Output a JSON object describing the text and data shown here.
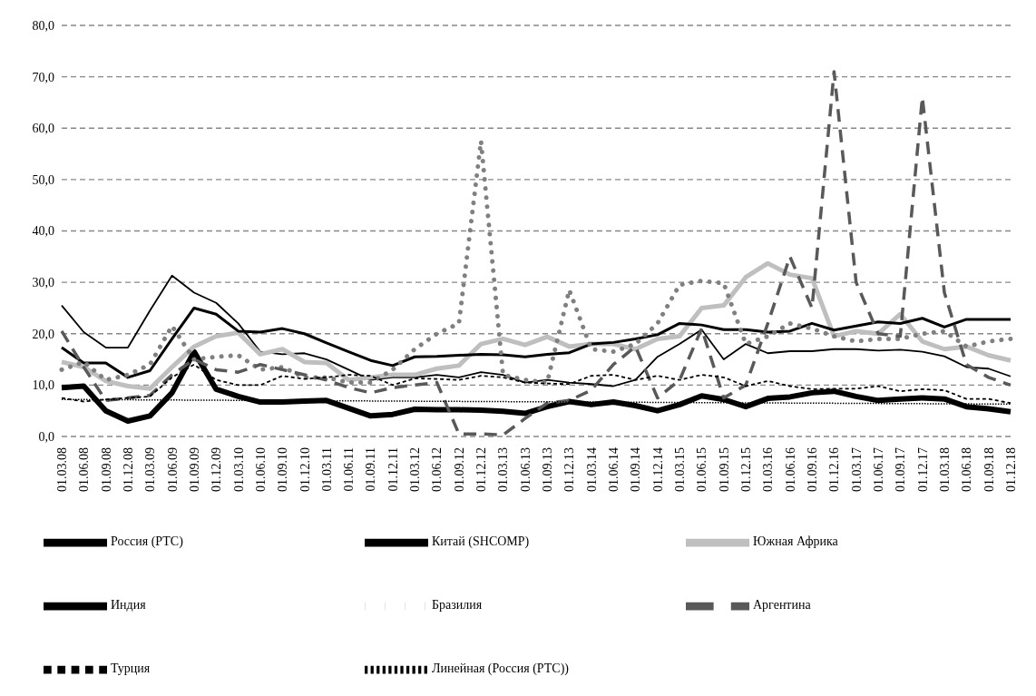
{
  "chart_data": {
    "type": "line",
    "categories": [
      "01.03.08",
      "01.06.08",
      "01.09.08",
      "01.12.08",
      "01.03.09",
      "01.06.09",
      "01.09.09",
      "01.12.09",
      "01.03.10",
      "01.06.10",
      "01.09.10",
      "01.12.10",
      "01.03.11",
      "01.06.11",
      "01.09.11",
      "01.12.11",
      "01.03.12",
      "01.06.12",
      "01.09.12",
      "01.12.12",
      "01.03.13",
      "01.06.13",
      "01.09.13",
      "01.12.13",
      "01.03.14",
      "01.06.14",
      "01.09.14",
      "01.12.14",
      "01.03.15",
      "01.06.15",
      "01.09.15",
      "01.12.15",
      "01.03.16",
      "01.06.16",
      "01.09.16",
      "01.12.16",
      "01.03.17",
      "01.06.17",
      "01.09.17",
      "01.12.17",
      "01.03.18",
      "01.06.18",
      "01.09.18",
      "01.12.18"
    ],
    "series": [
      {
        "name": "Россия (РТС)",
        "color": "#000000",
        "line_style": "solid",
        "values": [
          9.5,
          9.8,
          5,
          3,
          4,
          8.5,
          16.5,
          9.2,
          7.8,
          6.7,
          6.7,
          6.9,
          7,
          5.5,
          4,
          4.3,
          5.3,
          5.2,
          5.2,
          5.1,
          4.9,
          4.5,
          5.8,
          6.8,
          6.2,
          6.7,
          6,
          5,
          6.2,
          7.9,
          7.2,
          5.8,
          7.4,
          7.7,
          8.5,
          8.8,
          7.8,
          7,
          7.3,
          7.5,
          7.3,
          5.8,
          5.4,
          4.8
        ]
      },
      {
        "name": "Китай (SHCOMP)",
        "color": "#000000",
        "line_style": "solid",
        "values": [
          25.5,
          20.3,
          17.3,
          17.3,
          24.5,
          31.3,
          28,
          26,
          22,
          16.5,
          16,
          16.2,
          15,
          13,
          11,
          11.5,
          11.5,
          12,
          11.5,
          12.5,
          12,
          10.5,
          11,
          10.5,
          10.2,
          9.8,
          11,
          15.5,
          18,
          20.8,
          15,
          18,
          16.2,
          16.6,
          16.6,
          17,
          17,
          16.7,
          16.9,
          16.5,
          15.6,
          13.5,
          13.2,
          11.7
        ]
      },
      {
        "name": "Южная Африка",
        "color": "#bfbfbf",
        "line_style": "solid",
        "values": [
          14.5,
          13.5,
          10.8,
          9.8,
          9.3,
          13.5,
          17.5,
          19.5,
          20.2,
          16,
          17,
          14.5,
          14.3,
          11,
          11.5,
          12,
          12,
          13.2,
          13.8,
          18,
          19,
          17.8,
          19.4,
          17.5,
          18,
          18,
          17,
          19,
          19.5,
          25,
          25.5,
          31,
          33.7,
          31.5,
          30.8,
          19.5,
          20.5,
          20,
          23.8,
          18.5,
          17,
          17.5,
          15.8,
          14.8
        ]
      },
      {
        "name": "Индия",
        "color": "#000000",
        "line_style": "solid",
        "values": [
          17.3,
          14.3,
          14.3,
          11.5,
          12.8,
          19,
          25,
          23.8,
          20.5,
          20.3,
          21,
          20,
          18.2,
          16.5,
          14.8,
          13.8,
          15.5,
          15.6,
          15.8,
          16,
          15.9,
          15.5,
          16,
          16.3,
          18,
          18.3,
          19,
          19.8,
          22,
          21.7,
          20.8,
          20.8,
          20.3,
          20.5,
          22,
          20.7,
          21.5,
          22.3,
          22,
          23,
          21.3,
          22.8,
          22.8,
          22.8
        ]
      },
      {
        "name": "Бразилия",
        "color": "#808080",
        "line_style": "dotted",
        "values": [
          13,
          14.5,
          11,
          12,
          14,
          21.5,
          15,
          15.5,
          15.8,
          13,
          13.5,
          11.5,
          11.5,
          10.5,
          10.5,
          13,
          17,
          20,
          22,
          57.5,
          12,
          11,
          10.5,
          28.5,
          17,
          16.5,
          18,
          22,
          29.5,
          30.3,
          29.8,
          18,
          19.5,
          22,
          21,
          19.5,
          18.5,
          19,
          19,
          20,
          20.5,
          17.5,
          18.5,
          19
        ]
      },
      {
        "name": "Аргентина",
        "color": "#595959",
        "line_style": "dashed",
        "values": [
          20.5,
          13.5,
          7,
          7.5,
          8,
          12,
          15,
          13,
          12.5,
          14,
          13,
          12,
          11,
          9.5,
          8.5,
          9.5,
          10,
          10.5,
          0.5,
          0.5,
          0.3,
          3.5,
          6.5,
          7,
          9,
          14,
          17.5,
          7.5,
          11,
          21,
          7.5,
          10,
          22,
          35,
          25,
          71,
          30,
          20,
          19.5,
          66,
          28,
          14,
          11.5,
          10
        ]
      },
      {
        "name": "Турция",
        "color": "#000000",
        "line_style": "dashed",
        "values": [
          7.5,
          6.8,
          7.2,
          7.5,
          7.8,
          11.5,
          14,
          11,
          10,
          10,
          11.8,
          11.2,
          11.5,
          12,
          11.8,
          10,
          11.3,
          11.2,
          11,
          11.8,
          11.5,
          10.5,
          10.3,
          10.2,
          11.8,
          12,
          11,
          11.8,
          11,
          12,
          11.5,
          9.8,
          10.8,
          9.8,
          9.2,
          9.3,
          9.3,
          9.8,
          8.8,
          9.2,
          9,
          7.3,
          7.3,
          6.5
        ]
      },
      {
        "name": "Линейная (Россия (РТС))",
        "color": "#000000",
        "line_style": "dotted",
        "x": [
          "01.03.08",
          "01.12.18"
        ],
        "values": [
          7.2,
          6.3
        ]
      }
    ],
    "ylim": [
      0,
      80
    ],
    "yticks": [
      {
        "value": 0,
        "label": "0,0"
      },
      {
        "value": 10,
        "label": "10,0"
      },
      {
        "value": 20,
        "label": "20,0"
      },
      {
        "value": 30,
        "label": "30,0"
      },
      {
        "value": 40,
        "label": "40,0"
      },
      {
        "value": 50,
        "label": "50,0"
      },
      {
        "value": 60,
        "label": "60,0"
      },
      {
        "value": 70,
        "label": "70,0"
      },
      {
        "value": 80,
        "label": "80,0"
      }
    ],
    "grid": "y",
    "legend": "bottom"
  }
}
